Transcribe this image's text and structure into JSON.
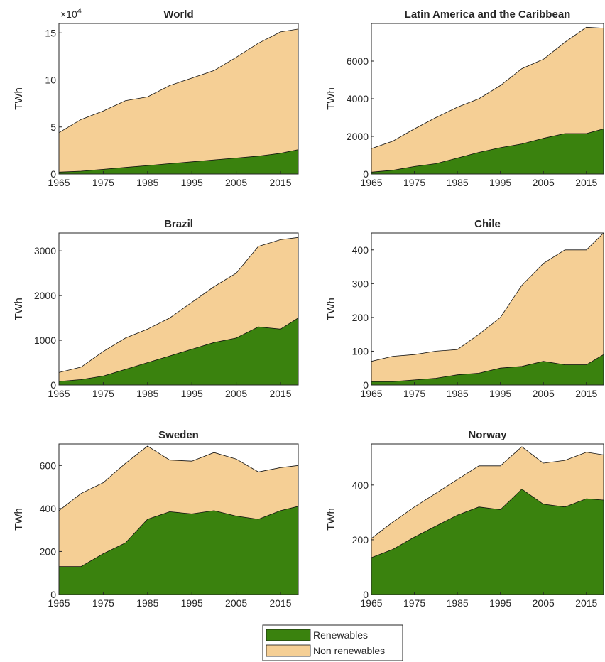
{
  "colors": {
    "renewables": "#3a820e",
    "non_renewables": "#f5cf95",
    "axis": "#262626",
    "outline": "#111111"
  },
  "legend": [
    {
      "name": "Renewables",
      "color": "#3a820e"
    },
    {
      "name": "Non renewables",
      "color": "#f5cf95"
    }
  ],
  "chart_data": [
    {
      "type": "area",
      "stacked": true,
      "title": "World",
      "ylabel": "TWh",
      "exponent": "4",
      "ylim": [
        0,
        16
      ],
      "yticks": [
        0,
        5,
        10,
        15
      ],
      "xlim": [
        1965,
        2019
      ],
      "xticks": [
        1965,
        1975,
        1985,
        1995,
        2005,
        2015
      ],
      "x": [
        1965,
        1970,
        1975,
        1980,
        1985,
        1990,
        1995,
        2000,
        2005,
        2010,
        2015,
        2019
      ],
      "series": [
        {
          "name": "Renewables",
          "values": [
            0.2,
            0.3,
            0.5,
            0.7,
            0.9,
            1.1,
            1.3,
            1.5,
            1.7,
            1.9,
            2.2,
            2.6
          ]
        },
        {
          "name": "Non renewables",
          "values": [
            4.2,
            5.5,
            6.2,
            7.1,
            7.3,
            8.3,
            8.9,
            9.5,
            10.7,
            12.0,
            12.9,
            12.8
          ]
        }
      ],
      "total": [
        4.4,
        5.8,
        6.7,
        7.8,
        8.2,
        9.4,
        10.2,
        11.0,
        12.4,
        13.9,
        15.1,
        15.4
      ]
    },
    {
      "type": "area",
      "stacked": true,
      "title": "Latin America and the Caribbean",
      "ylabel": "TWh",
      "exponent": "",
      "ylim": [
        0,
        8000
      ],
      "yticks": [
        0,
        2000,
        4000,
        6000
      ],
      "xlim": [
        1965,
        2019
      ],
      "xticks": [
        1965,
        1975,
        1985,
        1995,
        2005,
        2015
      ],
      "x": [
        1965,
        1970,
        1975,
        1980,
        1985,
        1990,
        1995,
        2000,
        2005,
        2010,
        2015,
        2019
      ],
      "series": [
        {
          "name": "Renewables",
          "values": [
            100,
            200,
            400,
            550,
            850,
            1150,
            1400,
            1600,
            1900,
            2150,
            2150,
            2400
          ]
        },
        {
          "name": "Non renewables",
          "values": [
            1250,
            1550,
            2000,
            2450,
            2700,
            2850,
            3300,
            4000,
            4200,
            4850,
            5650,
            5350
          ]
        }
      ],
      "total": [
        1350,
        1750,
        2400,
        3000,
        3550,
        4000,
        4700,
        5600,
        6100,
        7000,
        7800,
        7750
      ]
    },
    {
      "type": "area",
      "stacked": true,
      "title": "Brazil",
      "ylabel": "TWh",
      "exponent": "",
      "ylim": [
        0,
        3400
      ],
      "yticks": [
        0,
        1000,
        2000,
        3000
      ],
      "xlim": [
        1965,
        2019
      ],
      "xticks": [
        1965,
        1975,
        1985,
        1995,
        2005,
        2015
      ],
      "x": [
        1965,
        1970,
        1975,
        1980,
        1985,
        1990,
        1995,
        2000,
        2005,
        2010,
        2015,
        2019
      ],
      "series": [
        {
          "name": "Renewables",
          "values": [
            80,
            120,
            200,
            350,
            500,
            650,
            800,
            950,
            1050,
            1300,
            1250,
            1500
          ]
        },
        {
          "name": "Non renewables",
          "values": [
            200,
            280,
            550,
            700,
            750,
            850,
            1050,
            1250,
            1450,
            1800,
            2000,
            1800
          ]
        }
      ],
      "total": [
        280,
        400,
        750,
        1050,
        1250,
        1500,
        1850,
        2200,
        2500,
        3100,
        3250,
        3300
      ]
    },
    {
      "type": "area",
      "stacked": true,
      "title": "Chile",
      "ylabel": "TWh",
      "exponent": "",
      "ylim": [
        0,
        450
      ],
      "yticks": [
        0,
        100,
        200,
        300,
        400
      ],
      "xlim": [
        1965,
        2019
      ],
      "xticks": [
        1965,
        1975,
        1985,
        1995,
        2005,
        2015
      ],
      "x": [
        1965,
        1970,
        1975,
        1980,
        1985,
        1990,
        1995,
        2000,
        2005,
        2010,
        2015,
        2019
      ],
      "series": [
        {
          "name": "Renewables",
          "values": [
            10,
            10,
            15,
            20,
            30,
            35,
            50,
            55,
            70,
            60,
            60,
            90
          ]
        },
        {
          "name": "Non renewables",
          "values": [
            60,
            75,
            75,
            80,
            75,
            115,
            150,
            240,
            290,
            340,
            340,
            360
          ]
        }
      ],
      "total": [
        70,
        85,
        90,
        100,
        105,
        150,
        200,
        295,
        360,
        400,
        400,
        450
      ]
    },
    {
      "type": "area",
      "stacked": true,
      "title": "Sweden",
      "ylabel": "TWh",
      "exponent": "",
      "ylim": [
        0,
        700
      ],
      "yticks": [
        0,
        200,
        400,
        600
      ],
      "xlim": [
        1965,
        2019
      ],
      "xticks": [
        1965,
        1975,
        1985,
        1995,
        2005,
        2015
      ],
      "x": [
        1965,
        1970,
        1975,
        1980,
        1985,
        1990,
        1995,
        2000,
        2005,
        2010,
        2015,
        2019
      ],
      "series": [
        {
          "name": "Renewables",
          "values": [
            130,
            130,
            190,
            240,
            350,
            385,
            375,
            390,
            365,
            350,
            390,
            410
          ]
        },
        {
          "name": "Non renewables",
          "values": [
            260,
            340,
            330,
            370,
            340,
            240,
            245,
            270,
            265,
            220,
            200,
            190
          ]
        }
      ],
      "total": [
        390,
        470,
        520,
        610,
        690,
        625,
        620,
        660,
        630,
        570,
        590,
        600
      ]
    },
    {
      "type": "area",
      "stacked": true,
      "title": "Norway",
      "ylabel": "TWh",
      "exponent": "",
      "ylim": [
        0,
        550
      ],
      "yticks": [
        0,
        200,
        400
      ],
      "xlim": [
        1965,
        2019
      ],
      "xticks": [
        1965,
        1975,
        1985,
        1995,
        2005,
        2015
      ],
      "x": [
        1965,
        1970,
        1975,
        1980,
        1985,
        1990,
        1995,
        2000,
        2005,
        2010,
        2015,
        2019
      ],
      "series": [
        {
          "name": "Renewables",
          "values": [
            135,
            165,
            210,
            250,
            290,
            320,
            310,
            385,
            330,
            320,
            350,
            345
          ]
        },
        {
          "name": "Non renewables",
          "values": [
            70,
            100,
            110,
            120,
            130,
            150,
            160,
            155,
            150,
            170,
            170,
            165
          ]
        }
      ],
      "total": [
        205,
        265,
        320,
        370,
        420,
        470,
        470,
        540,
        480,
        490,
        520,
        510
      ]
    }
  ]
}
